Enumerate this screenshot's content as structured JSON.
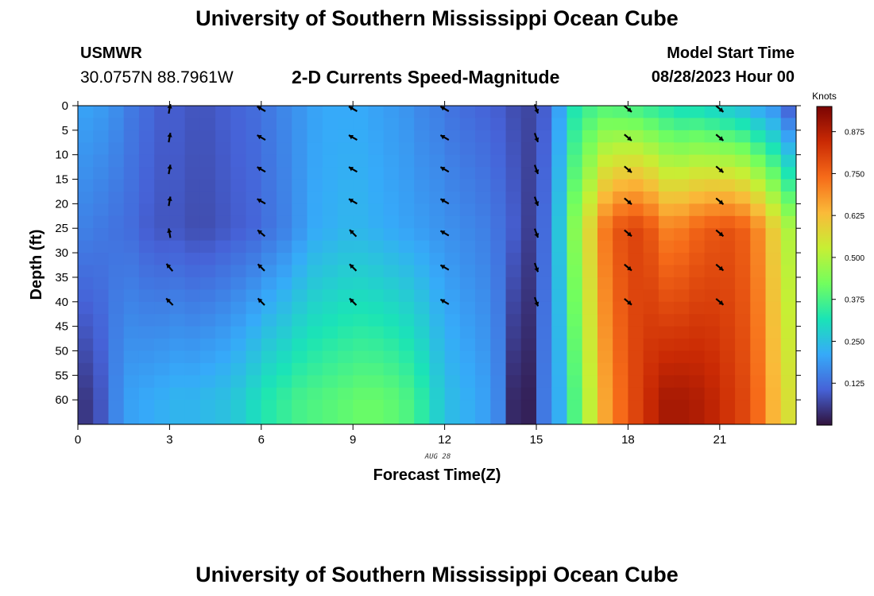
{
  "header": {
    "title": "University of Southern Mississippi Ocean Cube",
    "station": "USMWR",
    "coords": "30.0757N  88.7961W",
    "subtitle": "2-D Currents Speed-Magnitude",
    "start_label": "Model Start Time",
    "start_value": "08/28/2023 Hour 00"
  },
  "footer": {
    "title": "University of Southern Mississippi Ocean Cube"
  },
  "chart_data": {
    "type": "heatmap",
    "title": "2-D Currents Speed-Magnitude",
    "xlabel": "Forecast Time(Z)",
    "ylabel": "Depth (ft)",
    "x_date_label": "AUG 28",
    "xlim": [
      0,
      23.5
    ],
    "ylim": [
      0,
      65
    ],
    "y_reversed": true,
    "x_ticks": [
      0,
      3,
      6,
      9,
      12,
      15,
      18,
      21
    ],
    "y_ticks": [
      0,
      5,
      10,
      15,
      20,
      25,
      30,
      35,
      40,
      45,
      50,
      55,
      60
    ],
    "colorbar": {
      "unit": "Knots",
      "range": [
        0,
        0.95
      ],
      "ticks": [
        "0.125",
        "0.250",
        "0.375",
        "0.500",
        "0.625",
        "0.750",
        "0.875"
      ],
      "tick_values": [
        0.125,
        0.25,
        0.375,
        0.5,
        0.625,
        0.75,
        0.875
      ],
      "colormap": [
        "#30123b",
        "#4662d7",
        "#36aaf9",
        "#1ae4b6",
        "#72fe5e",
        "#c7ef34",
        "#faba39",
        "#f66b19",
        "#ca2a04",
        "#7a0403"
      ]
    },
    "time_columns": [
      0,
      0.5,
      1,
      1.5,
      2,
      2.5,
      3,
      3.5,
      4,
      4.5,
      5,
      5.5,
      6,
      6.5,
      7,
      7.5,
      8,
      8.5,
      9,
      9.5,
      10,
      10.5,
      11,
      11.5,
      12,
      12.5,
      13,
      13.5,
      14,
      14.5,
      15,
      15.5,
      16,
      16.5,
      17,
      17.5,
      18,
      18.5,
      19,
      19.5,
      20,
      20.5,
      21,
      21.5,
      22,
      22.5,
      23
    ],
    "speed_top_0ft": [
      0.2,
      0.19,
      0.17,
      0.14,
      0.12,
      0.1,
      0.1,
      0.09,
      0.09,
      0.1,
      0.11,
      0.12,
      0.14,
      0.16,
      0.18,
      0.2,
      0.21,
      0.21,
      0.21,
      0.2,
      0.19,
      0.18,
      0.16,
      0.15,
      0.13,
      0.12,
      0.11,
      0.1,
      0.08,
      0.07,
      0.1,
      0.2,
      0.32,
      0.36,
      0.38,
      0.37,
      0.36,
      0.34,
      0.32,
      0.3,
      0.3,
      0.28,
      0.26,
      0.24,
      0.2,
      0.17,
      0.1
    ],
    "speed_mid_25ft": [
      0.15,
      0.14,
      0.13,
      0.12,
      0.1,
      0.09,
      0.09,
      0.08,
      0.08,
      0.09,
      0.1,
      0.11,
      0.13,
      0.15,
      0.18,
      0.21,
      0.22,
      0.23,
      0.23,
      0.22,
      0.21,
      0.2,
      0.19,
      0.18,
      0.17,
      0.16,
      0.15,
      0.13,
      0.1,
      0.06,
      0.12,
      0.26,
      0.45,
      0.58,
      0.72,
      0.78,
      0.8,
      0.77,
      0.71,
      0.72,
      0.75,
      0.77,
      0.78,
      0.76,
      0.7,
      0.6,
      0.5
    ],
    "speed_bottom_60ft": [
      0.05,
      0.09,
      0.16,
      0.2,
      0.21,
      0.22,
      0.23,
      0.23,
      0.24,
      0.25,
      0.27,
      0.3,
      0.33,
      0.35,
      0.37,
      0.38,
      0.39,
      0.4,
      0.41,
      0.41,
      0.4,
      0.38,
      0.34,
      0.28,
      0.24,
      0.22,
      0.2,
      0.16,
      0.03,
      0.02,
      0.14,
      0.22,
      0.38,
      0.52,
      0.66,
      0.74,
      0.8,
      0.85,
      0.89,
      0.89,
      0.88,
      0.86,
      0.83,
      0.8,
      0.74,
      0.64,
      0.56
    ],
    "vectors": {
      "times": [
        3,
        6,
        9,
        12,
        15,
        18,
        21
      ],
      "depths": [
        0,
        6.5,
        13,
        19.5,
        26,
        33,
        40
      ],
      "directions_deg": [
        [
          10,
          -60,
          -60,
          -60,
          160,
          130,
          130
        ],
        [
          10,
          -60,
          -60,
          -60,
          160,
          130,
          130
        ],
        [
          10,
          -60,
          -60,
          -60,
          160,
          130,
          130
        ],
        [
          10,
          -60,
          -60,
          -60,
          160,
          130,
          130
        ],
        [
          -10,
          -50,
          -45,
          -60,
          160,
          130,
          130
        ],
        [
          -40,
          -45,
          -45,
          -60,
          160,
          130,
          130
        ],
        [
          -45,
          -45,
          -45,
          -60,
          160,
          130,
          130
        ]
      ]
    }
  }
}
